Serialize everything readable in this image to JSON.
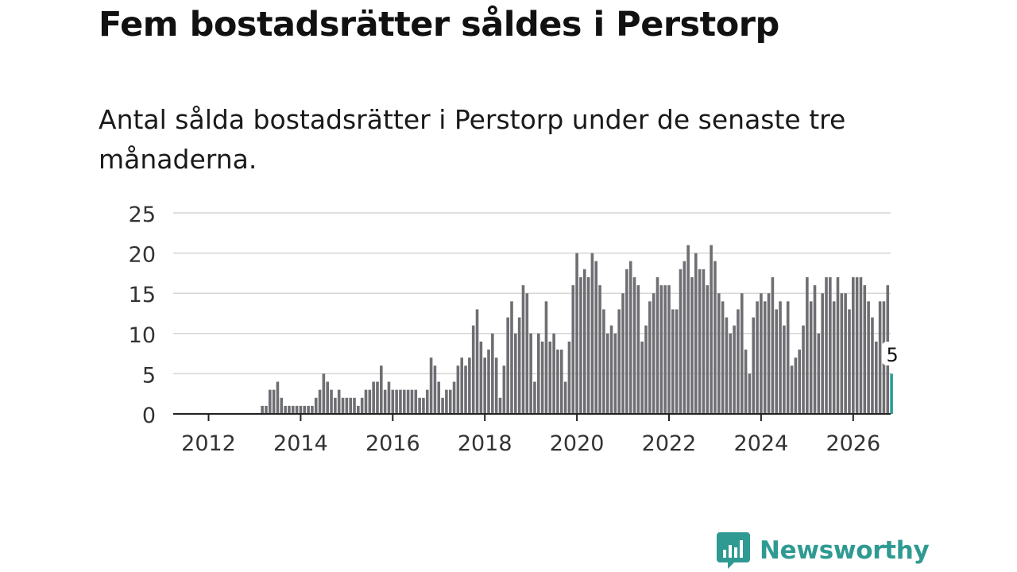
{
  "header": {
    "title": "Fem bostadsrätter såldes i Perstorp",
    "subtitle": "Antal sålda bostadsrätter i Perstorp under de senaste tre månaderna."
  },
  "brand": {
    "name": "Newsworthy",
    "color": "#2f9a92"
  },
  "colors": {
    "bar": "#6f6e73",
    "highlight": "#2a9d93",
    "grid": "#d6d6d6",
    "axis": "#222222",
    "tick_text": "#333333"
  },
  "chart_data": {
    "type": "bar",
    "title": "Fem bostadsrätter såldes i Perstorp",
    "xlabel": "",
    "ylabel": "",
    "ylim": [
      0,
      25
    ],
    "y_ticks": [
      0,
      5,
      10,
      15,
      20,
      25
    ],
    "x_tick_labels": [
      "2012",
      "2014",
      "2016",
      "2018",
      "2020",
      "2022",
      "2024",
      "2026"
    ],
    "start": "2012-01",
    "grid": true,
    "highlight_label": "5",
    "values": [
      0,
      0,
      0,
      0,
      0,
      0,
      0,
      0,
      0,
      0,
      0,
      0,
      0,
      0,
      1,
      1,
      3,
      3,
      4,
      2,
      1,
      1,
      1,
      1,
      1,
      1,
      1,
      1,
      2,
      3,
      5,
      4,
      3,
      2,
      3,
      2,
      2,
      2,
      2,
      1,
      2,
      3,
      3,
      4,
      4,
      6,
      3,
      4,
      3,
      3,
      3,
      3,
      3,
      3,
      3,
      2,
      2,
      3,
      7,
      6,
      4,
      2,
      3,
      3,
      4,
      6,
      7,
      6,
      7,
      11,
      13,
      9,
      7,
      8,
      10,
      7,
      2,
      6,
      12,
      14,
      10,
      12,
      16,
      15,
      10,
      4,
      10,
      9,
      14,
      9,
      10,
      8,
      8,
      4,
      9,
      16,
      20,
      17,
      18,
      17,
      20,
      19,
      16,
      13,
      10,
      11,
      10,
      13,
      15,
      18,
      19,
      17,
      16,
      9,
      11,
      14,
      15,
      17,
      16,
      16,
      16,
      13,
      13,
      18,
      19,
      21,
      17,
      20,
      18,
      18,
      16,
      21,
      19,
      15,
      14,
      12,
      10,
      11,
      13,
      15,
      8,
      5,
      12,
      14,
      15,
      14,
      15,
      17,
      13,
      14,
      11,
      14,
      6,
      7,
      8,
      11,
      17,
      14,
      16,
      10,
      15,
      17,
      17,
      14,
      17,
      15,
      15,
      13,
      17,
      17,
      17,
      16,
      14,
      12,
      9,
      14,
      14,
      16,
      5
    ]
  }
}
